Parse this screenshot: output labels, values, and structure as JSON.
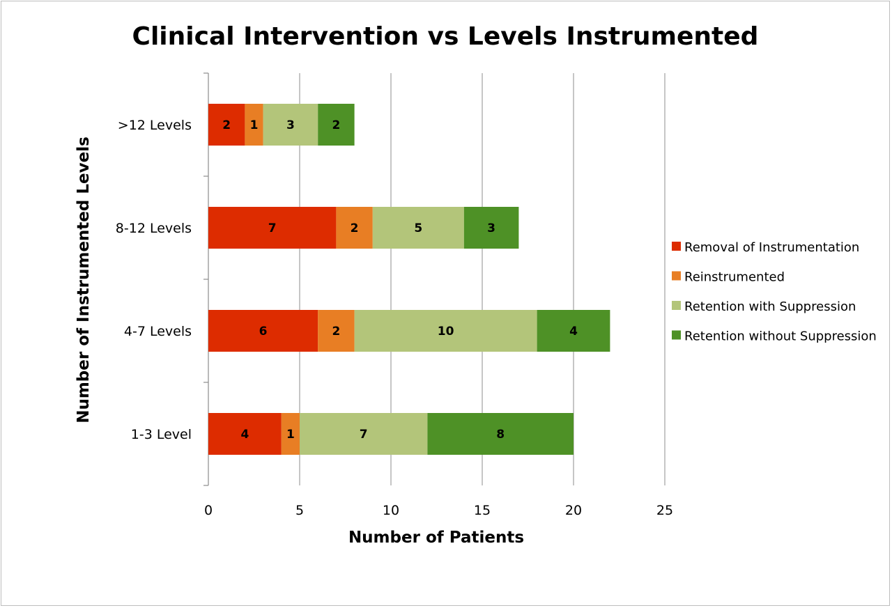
{
  "chart_data": {
    "type": "bar",
    "orientation": "horizontal",
    "stacked": true,
    "title": "Clinical Intervention vs Levels Instrumented",
    "xlabel": "Number of Patients",
    "ylabel": "Number of Instrumented Levels",
    "xlim": [
      0,
      25
    ],
    "xticks": [
      "0",
      "5",
      "10",
      "15",
      "20",
      "25"
    ],
    "grid": "vertical",
    "legend_position": "right",
    "categories": [
      "1-3 Level",
      "4-7 Levels",
      "8-12 Levels",
      ">12 Levels"
    ],
    "series": [
      {
        "name": "Removal of Instrumentation",
        "color": "#dd2c00",
        "values": [
          4,
          6,
          7,
          2
        ]
      },
      {
        "name": "Reinstrumented",
        "color": "#e87e24",
        "values": [
          1,
          2,
          2,
          1
        ]
      },
      {
        "name": "Retention with Suppression",
        "color": "#b3c57a",
        "values": [
          7,
          10,
          5,
          3
        ]
      },
      {
        "name": "Retention without Suppression",
        "color": "#4e9126",
        "values": [
          8,
          4,
          3,
          2
        ]
      }
    ]
  }
}
